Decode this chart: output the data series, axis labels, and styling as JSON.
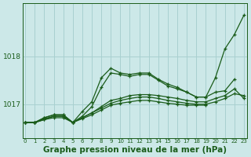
{
  "background_color": "#cce8e8",
  "grid_color": "#a8d0d0",
  "line_color": "#1a5c1a",
  "xlabel": "Graphe pression niveau de la mer (hPa)",
  "xlabel_fontsize": 7.5,
  "xtick_labels": [
    "0",
    "1",
    "2",
    "3",
    "4",
    "5",
    "6",
    "7",
    "8",
    "9",
    "10",
    "11",
    "12",
    "13",
    "14",
    "15",
    "16",
    "17",
    "18",
    "19",
    "20",
    "21",
    "22",
    "23"
  ],
  "yticks": [
    1017,
    1018
  ],
  "ylim": [
    1016.3,
    1019.1
  ],
  "xlim": [
    -0.3,
    23.3
  ],
  "lines": [
    {
      "x": [
        0,
        1,
        2,
        3,
        4,
        5,
        6,
        7,
        8,
        9,
        10,
        11,
        12,
        13,
        14,
        15,
        16,
        17,
        18,
        19,
        20,
        21,
        22,
        23
      ],
      "y": [
        1016.62,
        1016.62,
        1016.72,
        1016.78,
        1016.78,
        1016.62,
        1016.85,
        1017.05,
        1017.55,
        1017.75,
        1017.65,
        1017.62,
        1017.65,
        1017.65,
        1017.52,
        1017.42,
        1017.35,
        1017.25,
        1017.15,
        1017.15,
        1017.55,
        1018.15,
        1018.45,
        1018.85
      ]
    },
    {
      "x": [
        0,
        1,
        2,
        3,
        4,
        5,
        6,
        7,
        8,
        9,
        10,
        11,
        12,
        13,
        14,
        15,
        16,
        17,
        18,
        19,
        20,
        21,
        22
      ],
      "y": [
        1016.62,
        1016.62,
        1016.72,
        1016.78,
        1016.78,
        1016.62,
        1016.75,
        1016.95,
        1017.35,
        1017.65,
        1017.62,
        1017.58,
        1017.62,
        1017.62,
        1017.5,
        1017.38,
        1017.32,
        1017.25,
        1017.15,
        1017.15,
        1017.25,
        1017.28,
        1017.52
      ]
    },
    {
      "x": [
        0,
        1,
        2,
        3,
        4,
        5,
        6,
        7,
        8,
        9,
        10,
        11,
        12,
        13,
        14,
        15,
        16,
        17,
        18,
        19,
        20,
        21,
        22,
        23
      ],
      "y": [
        1016.62,
        1016.62,
        1016.68,
        1016.75,
        1016.75,
        1016.62,
        1016.72,
        1016.82,
        1016.92,
        1017.02,
        1017.08,
        1017.12,
        1017.15,
        1017.15,
        1017.12,
        1017.08,
        1017.05,
        1017.02,
        1017.0,
        1017.0,
        1017.05,
        1017.12,
        1017.22,
        1017.18
      ]
    },
    {
      "x": [
        0,
        1,
        2,
        3,
        4,
        5,
        6,
        7,
        8,
        9,
        10,
        11,
        12,
        13,
        14,
        15,
        16,
        17,
        18,
        19,
        20,
        21,
        22,
        23
      ],
      "y": [
        1016.62,
        1016.62,
        1016.7,
        1016.75,
        1016.75,
        1016.62,
        1016.72,
        1016.82,
        1016.95,
        1017.08,
        1017.12,
        1017.18,
        1017.2,
        1017.2,
        1017.18,
        1017.15,
        1017.12,
        1017.08,
        1017.05,
        1017.05,
        1017.12,
        1017.18,
        1017.32,
        1017.12
      ]
    },
    {
      "x": [
        0,
        1,
        2,
        3,
        4,
        5,
        6,
        7,
        8,
        9,
        10,
        11,
        12,
        13,
        14,
        15,
        16,
        17,
        18,
        19
      ],
      "y": [
        1016.62,
        1016.62,
        1016.68,
        1016.72,
        1016.72,
        1016.62,
        1016.7,
        1016.78,
        1016.88,
        1016.98,
        1017.02,
        1017.05,
        1017.08,
        1017.08,
        1017.05,
        1017.02,
        1017.0,
        1016.98,
        1016.98,
        1016.98
      ]
    }
  ]
}
